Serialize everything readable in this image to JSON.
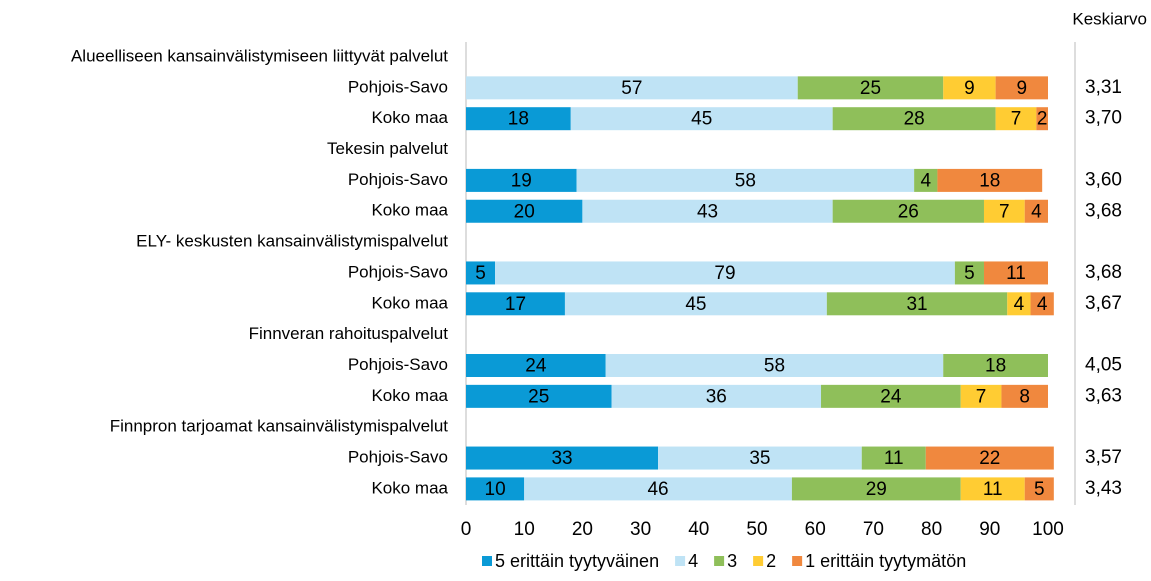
{
  "chart_data": {
    "type": "stacked_barh",
    "average_title": "Keskiarvo",
    "categories": [
      "Alueelliseen kansainvälistymiseen liittyvät palvelut",
      "Pohjois-Savo",
      "Koko maa",
      "Tekesin palvelut",
      "Pohjois-Savo",
      "Koko maa",
      "ELY- keskusten kansainvälistymispalvelut",
      "Pohjois-Savo",
      "Koko maa",
      "Finnveran rahoituspalvelut",
      "Pohjois-Savo",
      "Koko maa",
      "Finnpron tarjoamat kansainvälistymispalvelut",
      "Pohjois-Savo",
      "Koko maa"
    ],
    "series": [
      {
        "name": "5 erittäin tyytyväinen",
        "color": "#0a9ad6",
        "values": [
          null,
          null,
          18,
          null,
          19,
          20,
          null,
          5,
          17,
          null,
          24,
          25,
          null,
          33,
          10
        ]
      },
      {
        "name": "4",
        "color": "#bfe3f5",
        "values": [
          null,
          57,
          45,
          null,
          58,
          43,
          null,
          79,
          45,
          null,
          58,
          36,
          null,
          35,
          46
        ]
      },
      {
        "name": "3",
        "color": "#8fbf5a",
        "values": [
          null,
          25,
          28,
          null,
          4,
          26,
          null,
          5,
          31,
          null,
          18,
          24,
          null,
          11,
          29
        ]
      },
      {
        "name": "2",
        "color": "#ffcc33",
        "values": [
          null,
          9,
          7,
          null,
          null,
          7,
          null,
          null,
          4,
          null,
          null,
          7,
          null,
          null,
          11
        ]
      },
      {
        "name": "1 erittäin tyytymätön",
        "color": "#f0883e",
        "values": [
          null,
          9,
          2,
          null,
          18,
          4,
          null,
          11,
          4,
          null,
          null,
          8,
          null,
          22,
          5
        ]
      }
    ],
    "averages": [
      null,
      3.31,
      3.7,
      null,
      3.6,
      3.68,
      null,
      3.68,
      3.67,
      null,
      4.05,
      3.63,
      null,
      3.57,
      3.43
    ],
    "average_labels": [
      null,
      "3,31",
      "3,70",
      null,
      "3,60",
      "3,68",
      null,
      "3,68",
      "3,67",
      null,
      "4,05",
      "3,63",
      null,
      "3,57",
      "3,43"
    ],
    "xlim": [
      0,
      100
    ],
    "xticks": [
      0,
      10,
      20,
      30,
      40,
      50,
      60,
      70,
      80,
      90,
      100
    ]
  }
}
